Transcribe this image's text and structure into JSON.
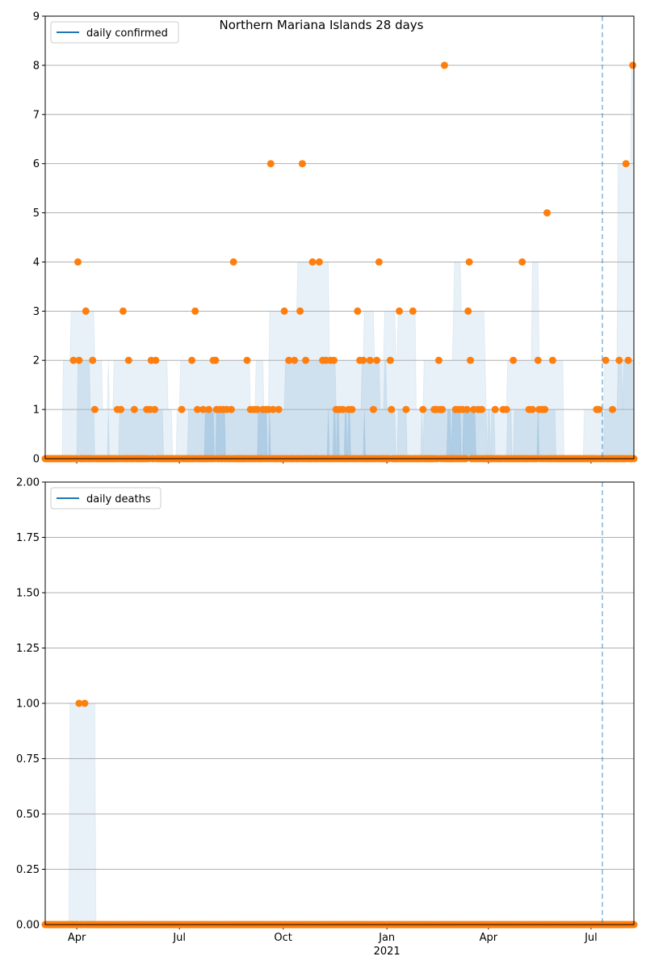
{
  "chart_data": [
    {
      "type": "scatter",
      "title": "Northern Mariana Islands 28 days",
      "legend": [
        "daily confirmed"
      ],
      "legend_placement": "top-left",
      "ylim": [
        0,
        9
      ],
      "yticks": [
        "0",
        "1",
        "2",
        "3",
        "4",
        "5",
        "6",
        "7",
        "8",
        "9"
      ],
      "grid": true,
      "start_date": "2020-03-04",
      "num_days": 523,
      "x_unit": "days since start_date",
      "marker_line_day": 494,
      "colors": {
        "points": "#ff7f0e",
        "line": "#1f77b4",
        "band": "#1f77b4"
      },
      "points": [
        [
          44,
          1
        ],
        [
          64,
          1
        ],
        [
          67,
          1
        ],
        [
          79,
          1
        ],
        [
          90,
          1
        ],
        [
          93,
          1
        ],
        [
          97,
          1
        ],
        [
          121,
          1
        ],
        [
          135,
          1
        ],
        [
          140,
          1
        ],
        [
          145,
          1
        ],
        [
          152,
          1
        ],
        [
          155,
          1
        ],
        [
          158,
          1
        ],
        [
          161,
          1
        ],
        [
          165,
          1
        ],
        [
          182,
          1
        ],
        [
          185,
          1
        ],
        [
          188,
          1
        ],
        [
          193,
          1
        ],
        [
          196,
          1
        ],
        [
          198,
          1
        ],
        [
          202,
          1
        ],
        [
          207,
          1
        ],
        [
          258,
          1
        ],
        [
          261,
          1
        ],
        [
          264,
          1
        ],
        [
          269,
          1
        ],
        [
          272,
          1
        ],
        [
          291,
          1
        ],
        [
          307,
          1
        ],
        [
          320,
          1
        ],
        [
          335,
          1
        ],
        [
          345,
          1
        ],
        [
          347,
          1
        ],
        [
          350,
          1
        ],
        [
          352,
          1
        ],
        [
          364,
          1
        ],
        [
          367,
          1
        ],
        [
          370,
          1
        ],
        [
          374,
          1
        ],
        [
          380,
          1
        ],
        [
          384,
          1
        ],
        [
          387,
          1
        ],
        [
          399,
          1
        ],
        [
          406,
          1
        ],
        [
          409,
          1
        ],
        [
          429,
          1
        ],
        [
          432,
          1
        ],
        [
          438,
          1
        ],
        [
          441,
          1
        ],
        [
          443,
          1
        ],
        [
          489,
          1
        ],
        [
          491,
          1
        ],
        [
          503,
          1
        ],
        [
          25,
          2
        ],
        [
          30,
          2
        ],
        [
          42,
          2
        ],
        [
          74,
          2
        ],
        [
          94,
          2
        ],
        [
          98,
          2
        ],
        [
          130,
          2
        ],
        [
          149,
          2
        ],
        [
          151,
          2
        ],
        [
          179,
          2
        ],
        [
          216,
          2
        ],
        [
          221,
          2
        ],
        [
          231,
          2
        ],
        [
          246,
          2
        ],
        [
          249,
          2
        ],
        [
          253,
          2
        ],
        [
          256,
          2
        ],
        [
          279,
          2
        ],
        [
          282,
          2
        ],
        [
          288,
          2
        ],
        [
          294,
          2
        ],
        [
          306,
          2
        ],
        [
          349,
          2
        ],
        [
          377,
          2
        ],
        [
          415,
          2
        ],
        [
          437,
          2
        ],
        [
          450,
          2
        ],
        [
          497,
          2
        ],
        [
          509,
          2
        ],
        [
          517,
          2
        ],
        [
          36,
          3
        ],
        [
          69,
          3
        ],
        [
          133,
          3
        ],
        [
          212,
          3
        ],
        [
          226,
          3
        ],
        [
          277,
          3
        ],
        [
          314,
          3
        ],
        [
          326,
          3
        ],
        [
          375,
          3
        ],
        [
          29,
          4
        ],
        [
          167,
          4
        ],
        [
          237,
          4
        ],
        [
          243,
          4
        ],
        [
          296,
          4
        ],
        [
          376,
          4
        ],
        [
          423,
          4
        ],
        [
          445,
          5
        ],
        [
          200,
          6
        ],
        [
          228,
          6
        ],
        [
          515,
          6
        ],
        [
          354,
          8
        ],
        [
          521,
          8
        ]
      ]
    },
    {
      "type": "scatter",
      "legend": [
        "daily deaths"
      ],
      "legend_placement": "top-left",
      "ylim": [
        0,
        2
      ],
      "yticks": [
        "0.00",
        "0.25",
        "0.50",
        "0.75",
        "1.00",
        "1.25",
        "1.50",
        "1.75",
        "2.00"
      ],
      "grid": true,
      "start_date": "2020-03-04",
      "num_days": 523,
      "marker_line_day": 494,
      "xticks": [
        {
          "day": 28,
          "label": "Apr"
        },
        {
          "day": 119,
          "label": "Jul"
        },
        {
          "day": 211,
          "label": "Oct"
        },
        {
          "day": 303,
          "label": "Jan",
          "sublabel": "2021"
        },
        {
          "day": 393,
          "label": "Apr"
        },
        {
          "day": 484,
          "label": "Jul"
        }
      ],
      "minor_tick_days": [
        58,
        89,
        150,
        180,
        241,
        272,
        334,
        362,
        423,
        454,
        515
      ],
      "points": [
        [
          30,
          1
        ],
        [
          35,
          1
        ]
      ]
    }
  ]
}
